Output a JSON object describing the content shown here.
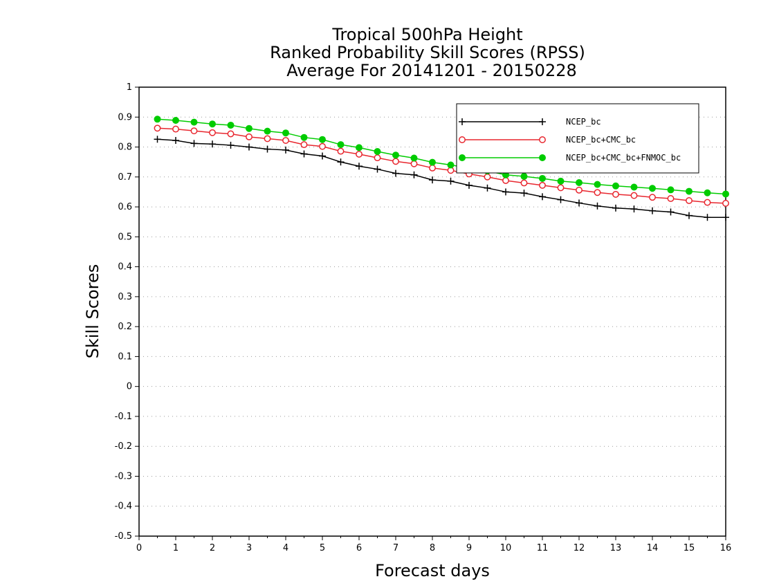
{
  "chart_data": {
    "type": "line",
    "title": [
      "Tropical 500hPa Height",
      "Ranked Probability Skill Scores (RPSS)",
      "Average For 20141201 - 20150228"
    ],
    "xlabel": "Forecast days",
    "ylabel": "Skill Scores",
    "xlim": [
      0,
      16
    ],
    "ylim": [
      -0.5,
      1
    ],
    "xticks": [
      0,
      1,
      2,
      3,
      4,
      5,
      6,
      7,
      8,
      9,
      10,
      11,
      12,
      13,
      14,
      15,
      16
    ],
    "yticks": [
      -0.5,
      -0.4,
      -0.3,
      -0.2,
      -0.1,
      0,
      0.1,
      0.2,
      0.3,
      0.4,
      0.5,
      0.6,
      0.7,
      0.8,
      0.9,
      1
    ],
    "ytick_labels": [
      "-0.5",
      "-0.4",
      "-0.3",
      "-0.2",
      "-0.1",
      "0",
      "0.1",
      "0.2",
      "0.3",
      "0.4",
      "0.5",
      "0.6",
      "0.7",
      "0.8",
      "0.9",
      "1"
    ],
    "grid": "horizontal-dotted",
    "legend_position": "top-right",
    "x": [
      0.5,
      1,
      1.5,
      2,
      2.5,
      3,
      3.5,
      4,
      4.5,
      5,
      5.5,
      6,
      6.5,
      7,
      7.5,
      8,
      8.5,
      9,
      9.5,
      10,
      10.5,
      11,
      11.5,
      12,
      12.5,
      13,
      13.5,
      14,
      14.5,
      15,
      15.5,
      16
    ],
    "series": [
      {
        "name": "NCEP_bc",
        "color": "#000000",
        "marker": "plus",
        "values": [
          0.826,
          0.822,
          0.812,
          0.81,
          0.806,
          0.8,
          0.793,
          0.79,
          0.777,
          0.77,
          0.75,
          0.736,
          0.726,
          0.712,
          0.707,
          0.69,
          0.686,
          0.672,
          0.663,
          0.65,
          0.646,
          0.634,
          0.624,
          0.613,
          0.603,
          0.596,
          0.593,
          0.587,
          0.583,
          0.571,
          0.565,
          0.565
        ]
      },
      {
        "name": "NCEP_bc+CMC_bc",
        "color": "#e8262e",
        "marker": "open-circle",
        "values": [
          0.863,
          0.86,
          0.854,
          0.848,
          0.844,
          0.834,
          0.828,
          0.822,
          0.808,
          0.802,
          0.786,
          0.776,
          0.764,
          0.752,
          0.744,
          0.73,
          0.722,
          0.71,
          0.7,
          0.688,
          0.68,
          0.672,
          0.664,
          0.656,
          0.648,
          0.642,
          0.638,
          0.632,
          0.628,
          0.621,
          0.615,
          0.612
        ]
      },
      {
        "name": "NCEP_bc+CMC_bc+FNMOC_bc",
        "color": "#00cc00",
        "marker": "filled-circle",
        "values": [
          0.893,
          0.889,
          0.883,
          0.877,
          0.873,
          0.862,
          0.853,
          0.847,
          0.832,
          0.825,
          0.808,
          0.798,
          0.785,
          0.773,
          0.763,
          0.749,
          0.74,
          0.73,
          0.72,
          0.707,
          0.702,
          0.695,
          0.686,
          0.681,
          0.675,
          0.67,
          0.666,
          0.662,
          0.657,
          0.652,
          0.647,
          0.643
        ]
      }
    ]
  }
}
